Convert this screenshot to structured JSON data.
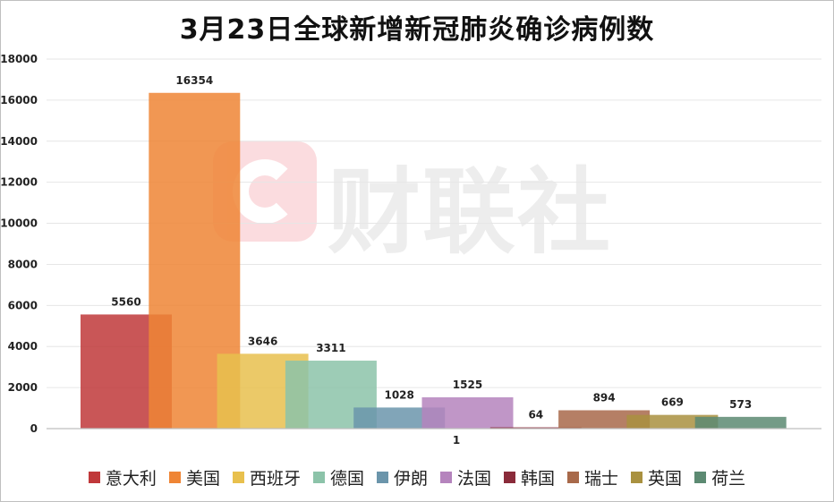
{
  "title": "3月23日全球新增新冠肺炎确诊病例数",
  "watermark": {
    "brand": "财联社"
  },
  "chart_data": {
    "type": "bar",
    "title": "3月23日全球新增新冠肺炎确诊病例数",
    "categories": [
      "1"
    ],
    "ylim": [
      0,
      18000
    ],
    "yticks": [
      0,
      2000,
      4000,
      6000,
      8000,
      10000,
      12000,
      14000,
      16000,
      18000
    ],
    "grid": true,
    "legend_position": "bottom",
    "data_labels": true,
    "series": [
      {
        "name": "意大利",
        "values": [
          5560
        ],
        "color": "#c0383a"
      },
      {
        "name": "美国",
        "values": [
          16354
        ],
        "color": "#ef8535"
      },
      {
        "name": "西班牙",
        "values": [
          3646
        ],
        "color": "#e8c04d"
      },
      {
        "name": "德国",
        "values": [
          3311
        ],
        "color": "#8cc3a9"
      },
      {
        "name": "伊朗",
        "values": [
          1028
        ],
        "color": "#6b95ab"
      },
      {
        "name": "法国",
        "values": [
          1525
        ],
        "color": "#b584bd"
      },
      {
        "name": "韩国",
        "values": [
          64
        ],
        "color": "#8a2b3a"
      },
      {
        "name": "瑞士",
        "values": [
          894
        ],
        "color": "#a8694a"
      },
      {
        "name": "英国",
        "values": [
          669
        ],
        "color": "#a99140"
      },
      {
        "name": "荷兰",
        "values": [
          573
        ],
        "color": "#5c8a72"
      }
    ]
  }
}
